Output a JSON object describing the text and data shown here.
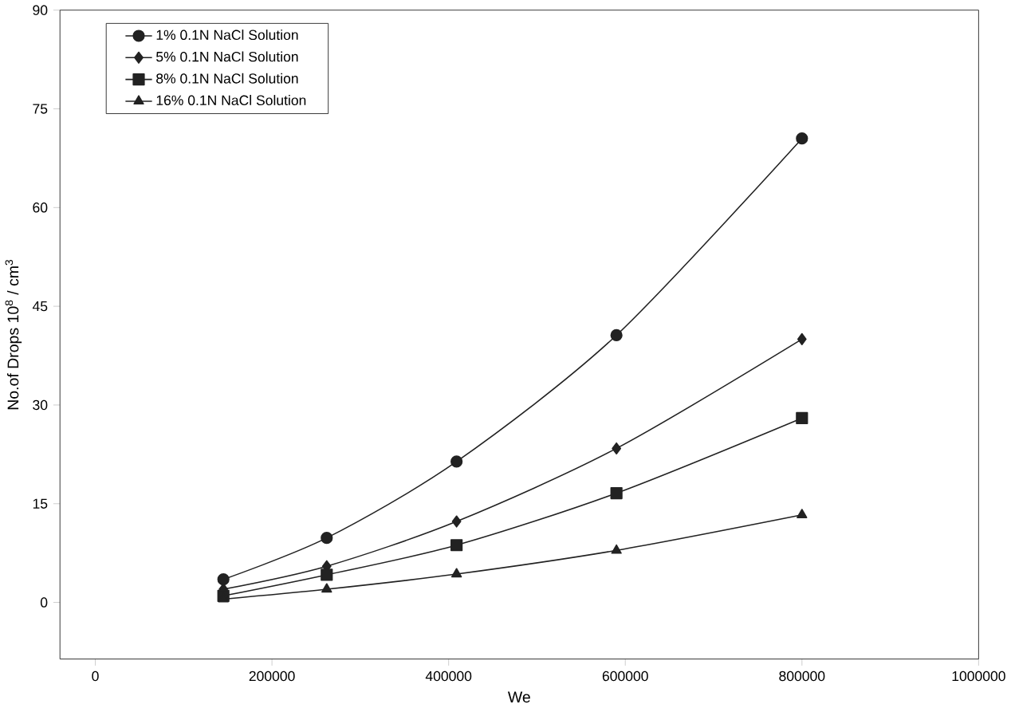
{
  "chart_data": {
    "type": "line",
    "xlabel": "We",
    "ylabel": "No.of Drops  10$^{8}$ / cm$^{3}$",
    "x": [
      145000,
      262000,
      409000,
      590000,
      800000
    ],
    "series": [
      {
        "name": "1% 0.1N NaCl Solution",
        "color": "#222222",
        "marker": "circle",
        "values": [
          3.5,
          9.8,
          21.4,
          40.6,
          70.5
        ]
      },
      {
        "name": "5% 0.1N NaCl Solution",
        "color": "#222222",
        "marker": "diamond",
        "values": [
          2,
          5.5,
          12.3,
          23.4,
          40
        ]
      },
      {
        "name": "8% 0.1N NaCl Solution",
        "color": "#222222",
        "marker": "square",
        "values": [
          1,
          4.2,
          8.7,
          16.6,
          28
        ]
      },
      {
        "name": "16% 0.1N NaCl Solution",
        "color": "#222222",
        "marker": "triangle",
        "values": [
          0.5,
          2,
          4.3,
          7.9,
          13.3
        ]
      }
    ],
    "xlim": [
      -40000,
      1000000
    ],
    "ylim": [
      -8.6,
      90
    ],
    "xticks": [
      0,
      200000,
      400000,
      600000,
      800000,
      1000000
    ],
    "yticks": [
      0,
      15,
      30,
      45,
      60,
      75,
      90
    ],
    "legend": "top left",
    "line_style": "solid"
  }
}
